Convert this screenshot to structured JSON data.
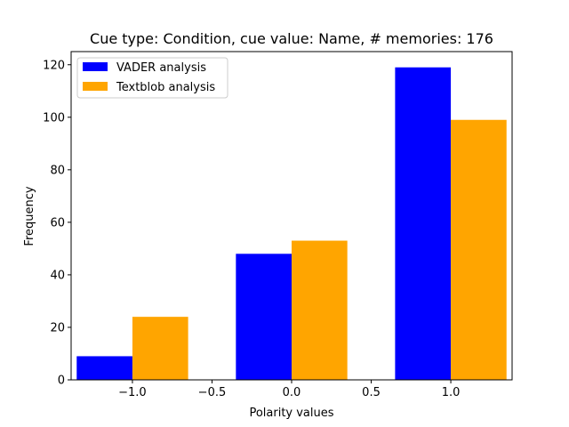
{
  "chart_data": {
    "type": "bar",
    "title": "Cue type: Condition, cue value: Name, # memories: 176",
    "xlabel": "Polarity values",
    "ylabel": "Frequency",
    "categories": [
      -1.0,
      0.0,
      1.0
    ],
    "bar_width": 0.35,
    "xlim": [
      -1.385,
      1.385
    ],
    "ylim": [
      0,
      125
    ],
    "xticks": [
      -1.0,
      -0.5,
      0.0,
      0.5,
      1.0
    ],
    "xtick_labels": [
      "−1.0",
      "−0.5",
      "0.0",
      "0.5",
      "1.0"
    ],
    "yticks": [
      0,
      20,
      40,
      60,
      80,
      100,
      120
    ],
    "ytick_labels": [
      "0",
      "20",
      "40",
      "60",
      "80",
      "100",
      "120"
    ],
    "series": [
      {
        "name": "VADER analysis",
        "color": "#0000ff",
        "offset": -0.175,
        "values": [
          9,
          48,
          119
        ]
      },
      {
        "name": "Textblob analysis",
        "color": "#ffa500",
        "offset": 0.175,
        "values": [
          24,
          53,
          99
        ]
      }
    ],
    "grid": false,
    "legend": "top-left"
  }
}
